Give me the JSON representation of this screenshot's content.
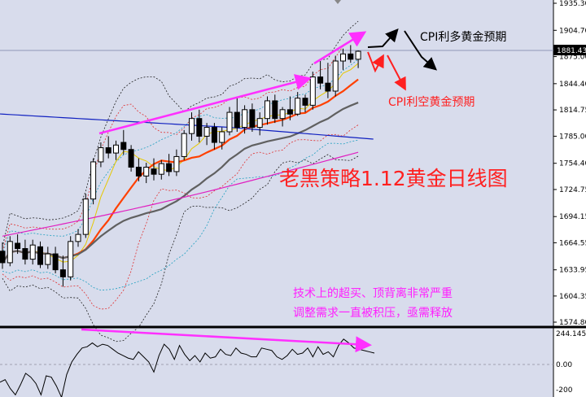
{
  "chart_data": [
    {
      "type": "candlestick",
      "title": "老黑策略1.12黄金日线图",
      "ylim": [
        1560,
        1950
      ],
      "y_ticks": [
        "1935.30",
        "1904.70",
        "1875.00",
        "1844.40",
        "1814.75",
        "1785.00",
        "1754.40",
        "1724.75",
        "1694.15",
        "1664.55",
        "1633.95",
        "1604.35",
        "1574.80"
      ],
      "price_label": "1881.43",
      "candles": [
        {
          "o": 1655,
          "h": 1665,
          "l": 1635,
          "c": 1642
        },
        {
          "o": 1642,
          "h": 1672,
          "l": 1638,
          "c": 1666
        },
        {
          "o": 1664,
          "h": 1674,
          "l": 1652,
          "c": 1658
        },
        {
          "o": 1658,
          "h": 1668,
          "l": 1640,
          "c": 1646
        },
        {
          "o": 1646,
          "h": 1668,
          "l": 1640,
          "c": 1662
        },
        {
          "o": 1660,
          "h": 1666,
          "l": 1636,
          "c": 1640
        },
        {
          "o": 1640,
          "h": 1660,
          "l": 1635,
          "c": 1652
        },
        {
          "o": 1652,
          "h": 1660,
          "l": 1630,
          "c": 1634
        },
        {
          "o": 1634,
          "h": 1650,
          "l": 1615,
          "c": 1626
        },
        {
          "o": 1626,
          "h": 1672,
          "l": 1622,
          "c": 1666
        },
        {
          "o": 1666,
          "h": 1680,
          "l": 1660,
          "c": 1674
        },
        {
          "o": 1674,
          "h": 1720,
          "l": 1670,
          "c": 1714
        },
        {
          "o": 1714,
          "h": 1760,
          "l": 1708,
          "c": 1756
        },
        {
          "o": 1756,
          "h": 1778,
          "l": 1750,
          "c": 1772
        },
        {
          "o": 1772,
          "h": 1785,
          "l": 1760,
          "c": 1766
        },
        {
          "o": 1766,
          "h": 1780,
          "l": 1758,
          "c": 1775
        },
        {
          "o": 1778,
          "h": 1792,
          "l": 1764,
          "c": 1770
        },
        {
          "o": 1770,
          "h": 1775,
          "l": 1745,
          "c": 1750
        },
        {
          "o": 1750,
          "h": 1760,
          "l": 1734,
          "c": 1740
        },
        {
          "o": 1740,
          "h": 1755,
          "l": 1732,
          "c": 1750
        },
        {
          "o": 1748,
          "h": 1760,
          "l": 1735,
          "c": 1742
        },
        {
          "o": 1742,
          "h": 1758,
          "l": 1736,
          "c": 1754
        },
        {
          "o": 1754,
          "h": 1765,
          "l": 1740,
          "c": 1745
        },
        {
          "o": 1745,
          "h": 1770,
          "l": 1740,
          "c": 1762
        },
        {
          "o": 1762,
          "h": 1792,
          "l": 1758,
          "c": 1788
        },
        {
          "o": 1788,
          "h": 1812,
          "l": 1780,
          "c": 1805
        },
        {
          "o": 1805,
          "h": 1815,
          "l": 1778,
          "c": 1785
        },
        {
          "o": 1785,
          "h": 1800,
          "l": 1775,
          "c": 1795
        },
        {
          "o": 1795,
          "h": 1800,
          "l": 1770,
          "c": 1778
        },
        {
          "o": 1778,
          "h": 1795,
          "l": 1770,
          "c": 1790
        },
        {
          "o": 1790,
          "h": 1818,
          "l": 1786,
          "c": 1812
        },
        {
          "o": 1812,
          "h": 1830,
          "l": 1790,
          "c": 1795
        },
        {
          "o": 1795,
          "h": 1820,
          "l": 1788,
          "c": 1815
        },
        {
          "o": 1815,
          "h": 1822,
          "l": 1790,
          "c": 1795
        },
        {
          "o": 1795,
          "h": 1812,
          "l": 1786,
          "c": 1805
        },
        {
          "o": 1805,
          "h": 1830,
          "l": 1798,
          "c": 1825
        },
        {
          "o": 1825,
          "h": 1832,
          "l": 1800,
          "c": 1805
        },
        {
          "o": 1805,
          "h": 1818,
          "l": 1796,
          "c": 1815
        },
        {
          "o": 1815,
          "h": 1830,
          "l": 1803,
          "c": 1810
        },
        {
          "o": 1810,
          "h": 1835,
          "l": 1808,
          "c": 1828
        },
        {
          "o": 1828,
          "h": 1832,
          "l": 1812,
          "c": 1820
        },
        {
          "o": 1820,
          "h": 1858,
          "l": 1815,
          "c": 1852
        },
        {
          "o": 1852,
          "h": 1870,
          "l": 1838,
          "c": 1845
        },
        {
          "o": 1845,
          "h": 1868,
          "l": 1828,
          "c": 1836
        },
        {
          "o": 1836,
          "h": 1876,
          "l": 1830,
          "c": 1870
        },
        {
          "o": 1870,
          "h": 1884,
          "l": 1860,
          "c": 1878
        },
        {
          "o": 1878,
          "h": 1888,
          "l": 1868,
          "c": 1872
        },
        {
          "o": 1872,
          "h": 1882,
          "l": 1862,
          "c": 1881
        }
      ],
      "annotations": [
        "CPI利多黄金预期",
        "CPI利空黄金预期",
        "技术上的超买、顶背离非常严重",
        "调整需求一直被积压，亟需释放"
      ],
      "colors": {
        "background": "#d8dcec",
        "candle": "#000000",
        "ma_short": "#ff4000",
        "ma_mid": "#606060",
        "ma_long": "#1020c0",
        "ma_pink": "#e020c0",
        "arrow_magenta": "#ff30ff",
        "arrow_red": "#ff2020",
        "title_red": "#ff2020",
        "text_magenta": "#ff20ff"
      }
    },
    {
      "type": "line",
      "ylim": [
        -200,
        244.1452
      ],
      "y_ticks": [
        "244.1452",
        "0.00",
        "-200"
      ],
      "series": [
        {
          "values": [
            -140,
            -120,
            -190,
            -240,
            -160,
            -70,
            -100,
            -150,
            -240,
            -90,
            -100,
            -170,
            -260,
            -80,
            20,
            80,
            130,
            140,
            170,
            140,
            160,
            150,
            120,
            90,
            70,
            50,
            40,
            100,
            60,
            20,
            -60,
            70,
            160,
            120,
            40,
            150,
            80,
            30,
            70,
            20,
            90,
            50,
            60,
            120,
            80,
            70,
            130,
            90,
            80,
            60,
            60,
            130,
            120,
            110,
            60,
            40,
            70,
            120,
            80,
            90,
            130,
            60,
            140,
            80,
            100,
            60,
            150,
            200,
            170,
            130,
            120,
            110,
            100,
            90
          ]
        }
      ]
    }
  ]
}
